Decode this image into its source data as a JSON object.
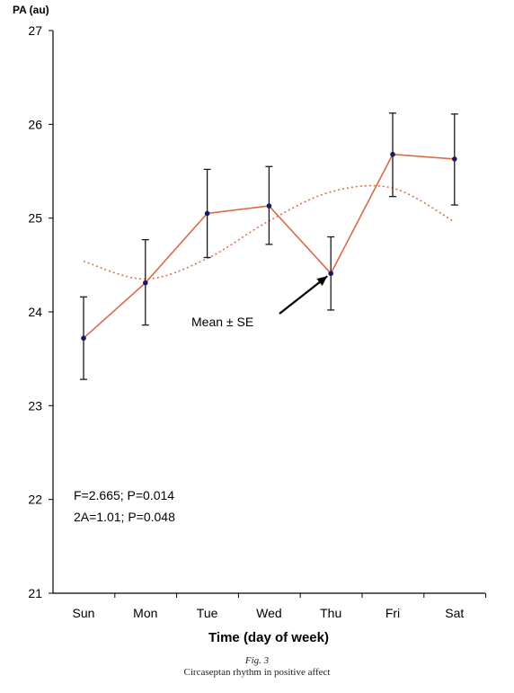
{
  "chart_data": {
    "type": "line",
    "ylabel": "PA (au)",
    "xlabel": "Time (day of week)",
    "categories": [
      "Sun",
      "Mon",
      "Tue",
      "Wed",
      "Thu",
      "Fri",
      "Sat"
    ],
    "ylim": [
      21,
      27
    ],
    "yticks": [
      21,
      22,
      23,
      24,
      25,
      26,
      27
    ],
    "grid": false,
    "series": [
      {
        "style": "solid",
        "color": "#d86a4a",
        "marker_color": "#1a1a5e",
        "values": [
          23.72,
          24.31,
          25.05,
          25.13,
          24.41,
          25.68,
          25.63
        ],
        "error_low": [
          23.28,
          23.86,
          24.58,
          24.72,
          24.02,
          25.23,
          25.14
        ],
        "error_high": [
          24.16,
          24.77,
          25.52,
          25.55,
          24.8,
          26.12,
          26.11
        ]
      },
      {
        "style": "dotted",
        "color": "#e07050",
        "values": [
          24.54,
          24.35,
          24.57,
          24.97,
          25.28,
          25.32,
          24.96
        ]
      }
    ],
    "annotations": {
      "arrow_label": "Mean ± SE",
      "stats_line1": "F=2.665; P=0.014",
      "stats_line2": "2A=1.01; P=0.048"
    }
  },
  "caption": {
    "figure_number": "Fig. 3",
    "title": "Circaseptan rhythm in positive affect"
  }
}
